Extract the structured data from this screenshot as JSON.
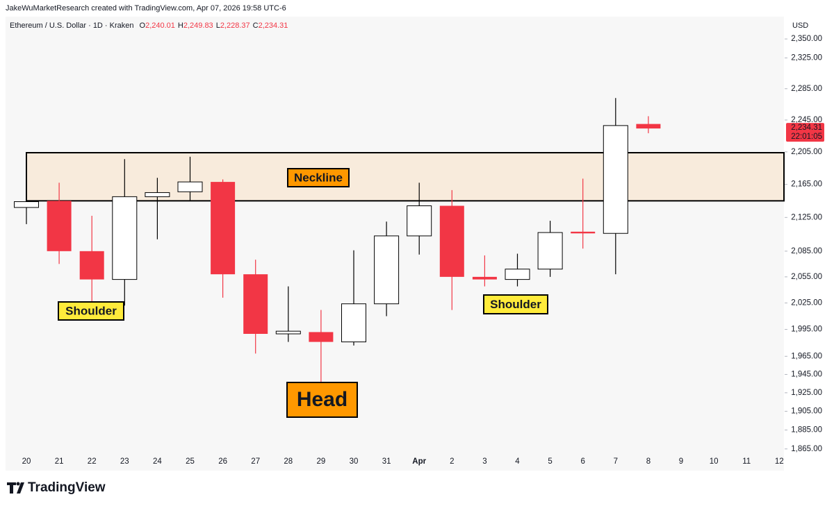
{
  "header": {
    "attribution": "JakeWuMarketResearch created with TradingView.com, Apr 07, 2026 19:58 UTC-6"
  },
  "chart_data": {
    "type": "candlestick",
    "title": "Ethereum / U.S. Dollar · 1D · Kraken",
    "ohlc_legend": [
      {
        "key": "O",
        "text": "2,240.01"
      },
      {
        "key": "H",
        "text": "2,249.83"
      },
      {
        "key": "L",
        "text": "2,228.37"
      },
      {
        "key": "C",
        "text": "2,234.31"
      }
    ],
    "categories": [
      "20",
      "21",
      "22",
      "23",
      "24",
      "25",
      "26",
      "27",
      "28",
      "29",
      "30",
      "31",
      "Apr",
      "2",
      "3",
      "4",
      "5",
      "6",
      "7",
      "8",
      "9",
      "10",
      "11",
      "12"
    ],
    "open": [
      2137,
      2145,
      2085,
      2052,
      2150,
      2156,
      2168,
      2058,
      1990,
      1992,
      1981,
      2024,
      2103,
      2139,
      2055,
      2052,
      2064,
      2108,
      2106,
      2240.01,
      null,
      null,
      null,
      null
    ],
    "high": [
      2200,
      2167,
      2127,
      2196,
      2173,
      2199,
      2171,
      2075,
      2044,
      2017,
      2086,
      2120,
      2167,
      2158,
      2080,
      2082,
      2121,
      2172,
      2273,
      2249.83,
      null,
      null,
      null,
      null
    ],
    "low": [
      2117,
      2070,
      2027,
      2022,
      2099,
      2145,
      2031,
      1968,
      1981,
      1937,
      1977,
      2010,
      2081,
      2017,
      2044,
      2044,
      2055,
      2088,
      2058,
      2228.37,
      null,
      null,
      null,
      null
    ],
    "close": [
      2144,
      2085,
      2052,
      2150,
      2155,
      2168,
      2058,
      1990,
      1993,
      1981,
      2024,
      2103,
      2139,
      2055,
      2052,
      2064,
      2107,
      2106,
      2238,
      2234.31,
      null,
      null,
      null,
      null
    ],
    "up_color": "#ffffff",
    "down_color": "#f23645",
    "border_color": "#000000",
    "ylim": [
      1859,
      2376
    ],
    "log_scale": true,
    "y_axis_label": "USD",
    "yticks": [
      {
        "value": 2350,
        "label": "2,350.00"
      },
      {
        "value": 2325,
        "label": "2,325.00"
      },
      {
        "value": 2285,
        "label": "2,285.00"
      },
      {
        "value": 2245,
        "label": "2,245.00"
      },
      {
        "value": 2205,
        "label": "2,205.00"
      },
      {
        "value": 2165,
        "label": "2,165.00"
      },
      {
        "value": 2125,
        "label": "2,125.00"
      },
      {
        "value": 2085,
        "label": "2,085.00"
      },
      {
        "value": 2055,
        "label": "2,055.00"
      },
      {
        "value": 2025,
        "label": "2,025.00"
      },
      {
        "value": 1995,
        "label": "1,995.00"
      },
      {
        "value": 1965,
        "label": "1,965.00"
      },
      {
        "value": 1945,
        "label": "1,945.00"
      },
      {
        "value": 1925,
        "label": "1,925.00"
      },
      {
        "value": 1905,
        "label": "1,905.00"
      },
      {
        "value": 1885,
        "label": "1,885.00"
      },
      {
        "value": 1865,
        "label": "1,865.00"
      }
    ],
    "last_price": {
      "label": "2,234.31",
      "countdown": "22:01:05",
      "color": "#f23645"
    },
    "neckline_zone": {
      "range": [
        2145,
        2204
      ],
      "color": "#f8ebdc"
    },
    "annotations": [
      {
        "text": "Neckline",
        "background": "#ff9800",
        "text_color": "#ffffff"
      },
      {
        "text": "Shoulder",
        "background": "#ffeb3b",
        "text_color": "#000000"
      },
      {
        "text": "Shoulder",
        "background": "#ffeb3b",
        "text_color": "#000000"
      },
      {
        "text": "Head",
        "background": "#ff9800",
        "text_color": "#000000"
      }
    ]
  },
  "footer": {
    "brand": "TradingView"
  }
}
